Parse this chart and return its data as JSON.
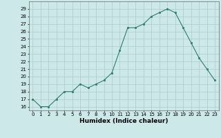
{
  "x": [
    0,
    1,
    2,
    3,
    4,
    5,
    6,
    7,
    8,
    9,
    10,
    11,
    12,
    13,
    14,
    15,
    16,
    17,
    18,
    19,
    20,
    21,
    22,
    23
  ],
  "y": [
    17,
    16,
    16,
    17,
    18,
    18,
    19,
    18.5,
    19,
    19.5,
    20.5,
    23.5,
    26.5,
    26.5,
    27,
    28,
    28.5,
    29,
    28.5,
    26.5,
    24.5,
    22.5,
    21,
    19.5
  ],
  "xlabel": "Humidex (Indice chaleur)",
  "xlim": [
    -0.5,
    23.5
  ],
  "ylim": [
    15.5,
    30
  ],
  "yticks": [
    16,
    17,
    18,
    19,
    20,
    21,
    22,
    23,
    24,
    25,
    26,
    27,
    28,
    29
  ],
  "xticks": [
    0,
    1,
    2,
    3,
    4,
    5,
    6,
    7,
    8,
    9,
    10,
    11,
    12,
    13,
    14,
    15,
    16,
    17,
    18,
    19,
    20,
    21,
    22,
    23
  ],
  "line_color": "#2d7d6e",
  "bg_color": "#cce8e8",
  "grid_color": "#aacccc"
}
